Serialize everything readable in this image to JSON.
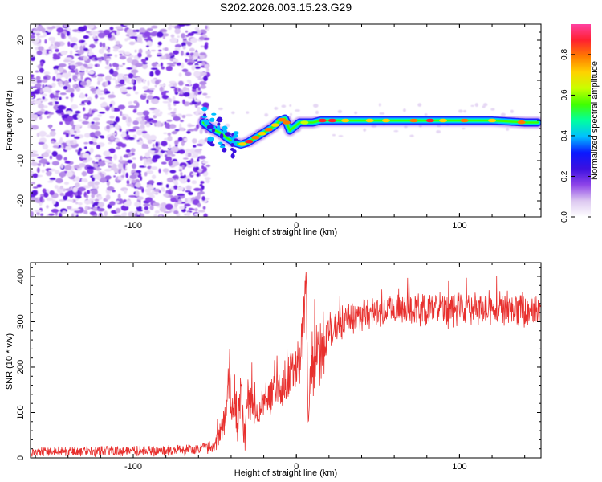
{
  "title": "S202.2026.003.15.23.G29",
  "chart_data": [
    {
      "type": "heatmap",
      "title": "S202.2026.003.15.23.G29",
      "xlabel": "Height of straight line (km)",
      "ylabel": "Frequency (Hz)",
      "xlim": [
        -163,
        150
      ],
      "ylim": [
        -24,
        24
      ],
      "xticks": [
        -100,
        0,
        100
      ],
      "yticks": [
        -20,
        -10,
        0,
        10,
        20
      ],
      "noise_region_x": [
        -163,
        -57
      ],
      "ridge": {
        "x": [
          -57,
          -52,
          -47,
          -42,
          -38,
          -34,
          -30,
          -26,
          -22,
          -18,
          -14,
          -10,
          -7,
          -4,
          -1,
          2,
          5,
          10,
          15,
          20,
          40,
          60,
          80,
          100,
          120,
          140,
          148
        ],
        "y": [
          -0.5,
          -2,
          -3,
          -4.5,
          -5.5,
          -6,
          -5.5,
          -4.5,
          -3.5,
          -2.5,
          -1.5,
          0,
          0.5,
          -2.5,
          -1.5,
          -0.5,
          -0.5,
          -0.5,
          0,
          0,
          0,
          0,
          0,
          0,
          0,
          -0.5,
          -0.5
        ]
      },
      "colorbar": {
        "label": "Normalized spectral amplitude",
        "range": [
          0,
          0.95
        ],
        "ticks": [
          "0.0",
          "0.2",
          "0.4",
          "0.6",
          "0.8"
        ],
        "colormap": [
          "#ffffff",
          "#dcc8f0",
          "#8e44e8",
          "#3c10e0",
          "#0a18ff",
          "#00c0ff",
          "#00ffa0",
          "#40ff00",
          "#c8ff00",
          "#ffd200",
          "#ff7a00",
          "#ff2030",
          "#ff40a0"
        ]
      }
    },
    {
      "type": "line",
      "xlabel": "Height of straight line (km)",
      "ylabel": "SNR (10 * v/v)",
      "xlim": [
        -163,
        150
      ],
      "ylim": [
        0,
        430
      ],
      "xticks": [
        -100,
        0,
        100
      ],
      "yticks": [
        0,
        100,
        200,
        300,
        400
      ],
      "series": [
        {
          "name": "SNR",
          "color": "#e8302e",
          "x": [
            -163,
            -140,
            -120,
            -100,
            -80,
            -60,
            -50,
            -45,
            -42,
            -41,
            -40,
            -38,
            -36,
            -34,
            -33,
            -32,
            -30,
            -28,
            -25,
            -20,
            -15,
            -10,
            -5,
            0,
            2,
            4,
            5,
            6,
            7,
            8,
            10,
            15,
            20,
            25,
            30,
            40,
            50,
            60,
            70,
            80,
            90,
            100,
            110,
            120,
            130,
            140,
            150
          ],
          "y": [
            15,
            15,
            16,
            17,
            18,
            20,
            30,
            70,
            140,
            200,
            120,
            150,
            80,
            160,
            90,
            40,
            150,
            120,
            110,
            120,
            140,
            160,
            190,
            200,
            230,
            260,
            340,
            420,
            80,
            150,
            200,
            250,
            280,
            300,
            310,
            320,
            325,
            330,
            330,
            335,
            330,
            330,
            330,
            330,
            330,
            330,
            330
          ],
          "noise_band": [
            10,
            10,
            10,
            10,
            10,
            10,
            15,
            25,
            40,
            60,
            50,
            50,
            50,
            50,
            50,
            40,
            40,
            40,
            35,
            35,
            40,
            45,
            45,
            50,
            55,
            60,
            60,
            60,
            50,
            60,
            60,
            55,
            40,
            35,
            30,
            30,
            30,
            30,
            30,
            30,
            30,
            30,
            30,
            30,
            30,
            30,
            30
          ]
        }
      ]
    }
  ]
}
